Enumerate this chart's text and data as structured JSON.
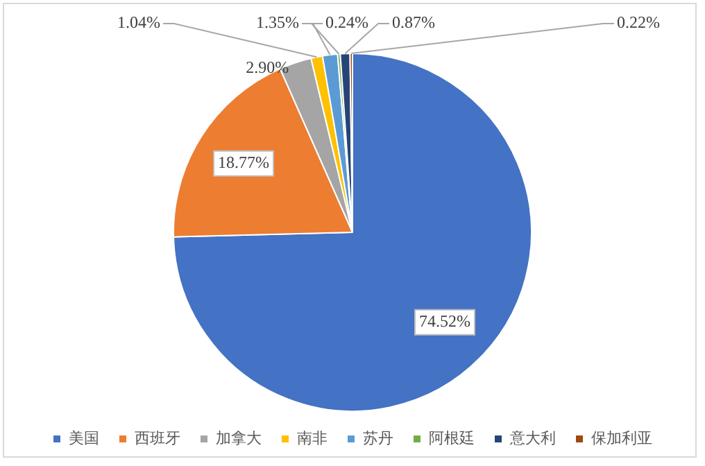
{
  "chart_data": {
    "type": "pie",
    "categories": [
      "美国",
      "西班牙",
      "加拿大",
      "南非",
      "苏丹",
      "阿根廷",
      "意大利",
      "保加利亚"
    ],
    "values": [
      74.52,
      18.77,
      2.9,
      1.04,
      1.35,
      0.24,
      0.87,
      0.22
    ],
    "colors": [
      "#4472c4",
      "#ed7d31",
      "#a5a5a5",
      "#ffc000",
      "#5b9bd5",
      "#70ad47",
      "#264478",
      "#9e480e"
    ],
    "value_labels": [
      "74.52%",
      "18.77%",
      "2.90%",
      "1.04%",
      "1.35%",
      "0.24%",
      "0.87%",
      "0.22%"
    ],
    "legend": "bottom"
  }
}
